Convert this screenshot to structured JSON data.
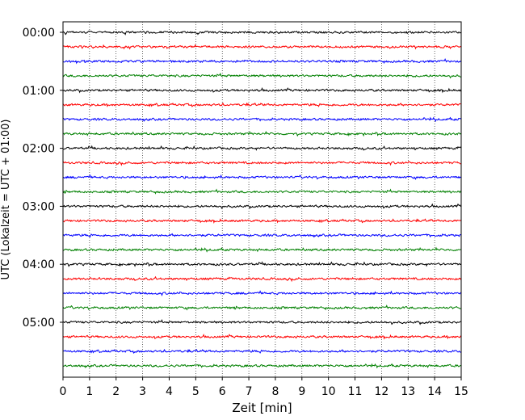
{
  "chart_data": {
    "type": "line",
    "title": "",
    "xlabel": "Zeit  [min]",
    "ylabel": "UTC (Lokalzeit = UTC + 01:00)",
    "xlim": [
      0,
      15
    ],
    "x_ticks": [
      "0",
      "1",
      "2",
      "3",
      "4",
      "5",
      "6",
      "7",
      "8",
      "9",
      "10",
      "11",
      "12",
      "13",
      "14",
      "15"
    ],
    "y_tick_labels": [
      "00:00",
      "01:00",
      "02:00",
      "03:00",
      "04:00",
      "05:00"
    ],
    "trace_interval_min": 15,
    "trace_count": 24,
    "grid": "vertical dotted at each minute",
    "series_colors": [
      "#000000",
      "#ff0000",
      "#0000ff",
      "#008000"
    ],
    "trace_start_times": [
      "00:00",
      "00:15",
      "00:30",
      "00:45",
      "01:00",
      "01:15",
      "01:30",
      "01:45",
      "02:00",
      "02:15",
      "02:30",
      "02:45",
      "03:00",
      "03:15",
      "03:30",
      "03:45",
      "04:00",
      "04:15",
      "04:30",
      "04:45",
      "05:00",
      "05:15",
      "05:30",
      "05:45"
    ]
  }
}
